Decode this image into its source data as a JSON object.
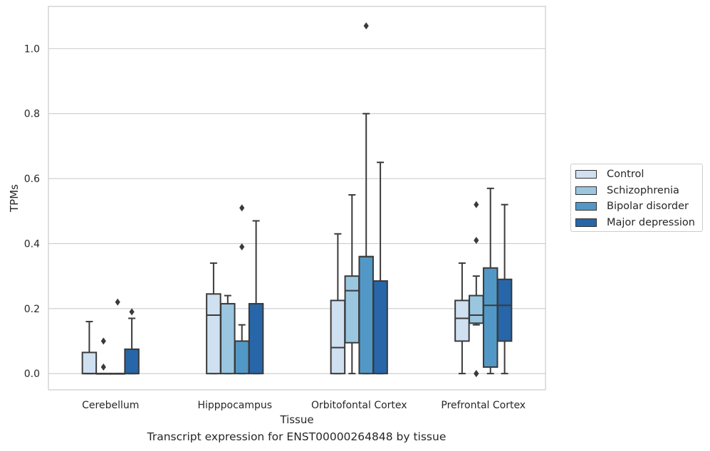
{
  "chart_data": {
    "type": "box",
    "xlabel": "Tissue",
    "ylabel": "TPMs",
    "ylim": [
      -0.05,
      1.13
    ],
    "yticks": [
      0.0,
      0.2,
      0.4,
      0.6,
      0.8,
      1.0
    ],
    "ytick_labels": [
      "0.0",
      "0.2",
      "0.4",
      "0.6",
      "0.8",
      "1.0"
    ],
    "grid": "horizontal",
    "legend_position": "right",
    "categories": [
      "Cerebellum",
      "Hipppocampus",
      "Orbitofontal Cortex",
      "Prefrontal Cortex"
    ],
    "series": [
      {
        "name": "Control",
        "color": "#cfe0f1",
        "boxes": [
          {
            "whislo": 0.0,
            "q1": 0.0,
            "med": 0.0,
            "q3": 0.065,
            "whishi": 0.16,
            "fliers": []
          },
          {
            "whislo": 0.0,
            "q1": 0.0,
            "med": 0.18,
            "q3": 0.245,
            "whishi": 0.34,
            "fliers": []
          },
          {
            "whislo": 0.0,
            "q1": 0.0,
            "med": 0.08,
            "q3": 0.225,
            "whishi": 0.43,
            "fliers": []
          },
          {
            "whislo": 0.0,
            "q1": 0.1,
            "med": 0.17,
            "q3": 0.225,
            "whishi": 0.34,
            "fliers": []
          }
        ]
      },
      {
        "name": "Schizophrenia",
        "color": "#9ac6e0",
        "boxes": [
          {
            "whislo": 0.0,
            "q1": 0.0,
            "med": 0.0,
            "q3": 0.0,
            "whishi": 0.0,
            "fliers": [
              0.1,
              0.02
            ]
          },
          {
            "whislo": 0.0,
            "q1": 0.0,
            "med": 0.215,
            "q3": 0.215,
            "whishi": 0.24,
            "fliers": []
          },
          {
            "whislo": 0.0,
            "q1": 0.095,
            "med": 0.255,
            "q3": 0.3,
            "whishi": 0.55,
            "fliers": []
          },
          {
            "whislo": 0.15,
            "q1": 0.155,
            "med": 0.18,
            "q3": 0.24,
            "whishi": 0.3,
            "fliers": [
              0.52,
              0.41,
              0.0,
              0.0
            ]
          }
        ]
      },
      {
        "name": "Bipolar disorder",
        "color": "#5298c6",
        "boxes": [
          {
            "whislo": 0.0,
            "q1": 0.0,
            "med": 0.0,
            "q3": 0.0,
            "whishi": 0.0,
            "fliers": [
              0.22
            ]
          },
          {
            "whislo": 0.0,
            "q1": 0.0,
            "med": 0.1,
            "q3": 0.1,
            "whishi": 0.15,
            "fliers": [
              0.51,
              0.39
            ]
          },
          {
            "whislo": 0.0,
            "q1": 0.0,
            "med": 0.36,
            "q3": 0.36,
            "whishi": 0.8,
            "fliers": [
              1.07
            ]
          },
          {
            "whislo": 0.0,
            "q1": 0.02,
            "med": 0.21,
            "q3": 0.325,
            "whishi": 0.57,
            "fliers": []
          }
        ]
      },
      {
        "name": "Major depression",
        "color": "#2766a8",
        "boxes": [
          {
            "whislo": 0.0,
            "q1": 0.0,
            "med": 0.0,
            "q3": 0.075,
            "whishi": 0.17,
            "fliers": [
              0.19
            ]
          },
          {
            "whislo": 0.0,
            "q1": 0.0,
            "med": 0.215,
            "q3": 0.215,
            "whishi": 0.47,
            "fliers": []
          },
          {
            "whislo": 0.0,
            "q1": 0.0,
            "med": 0.285,
            "q3": 0.285,
            "whishi": 0.65,
            "fliers": []
          },
          {
            "whislo": 0.0,
            "q1": 0.1,
            "med": 0.21,
            "q3": 0.29,
            "whishi": 0.52,
            "fliers": []
          }
        ]
      }
    ]
  },
  "caption": "Transcript expression for ENST00000264848 by tissue"
}
